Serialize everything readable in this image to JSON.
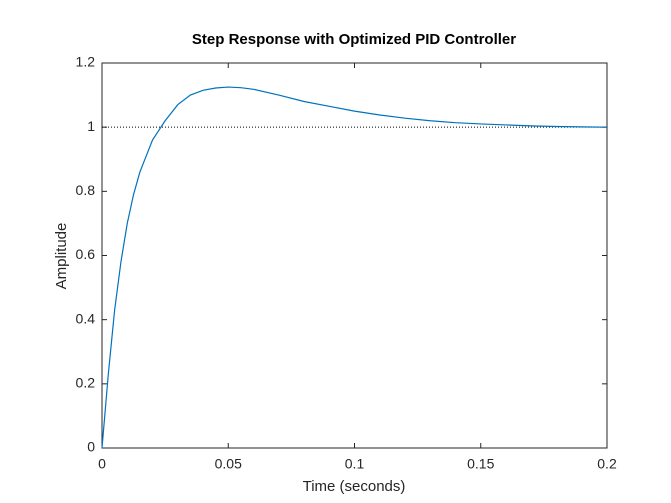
{
  "chart_data": {
    "type": "line",
    "title": "Step Response with Optimized PID Controller",
    "xlabel": "Time (seconds)",
    "ylabel": "Amplitude",
    "x": [
      0,
      0.0025,
      0.005,
      0.0075,
      0.01,
      0.0125,
      0.015,
      0.02,
      0.025,
      0.03,
      0.035,
      0.04,
      0.045,
      0.05,
      0.055,
      0.06,
      0.07,
      0.08,
      0.09,
      0.1,
      0.11,
      0.12,
      0.13,
      0.14,
      0.15,
      0.16,
      0.17,
      0.18,
      0.19,
      0.2
    ],
    "series": [
      {
        "color": "#0072bd",
        "values": [
          0,
          0.23,
          0.43,
          0.58,
          0.7,
          0.79,
          0.86,
          0.96,
          1.02,
          1.07,
          1.1,
          1.115,
          1.122,
          1.125,
          1.123,
          1.118,
          1.1,
          1.08,
          1.065,
          1.05,
          1.038,
          1.028,
          1.02,
          1.014,
          1.01,
          1.007,
          1.004,
          1.002,
          1.001,
          1.0
        ]
      }
    ],
    "reference_line": 1,
    "xlim": [
      0,
      0.2
    ],
    "xticks": [
      0,
      0.05,
      0.1,
      0.15,
      0.2
    ],
    "ylim": [
      0,
      1.2
    ],
    "yticks": [
      0,
      0.2,
      0.4,
      0.6,
      0.8,
      1,
      1.2
    ]
  }
}
